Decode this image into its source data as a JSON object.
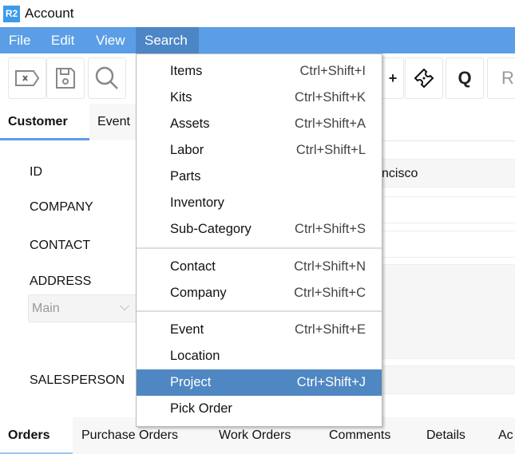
{
  "window": {
    "logo": "R2",
    "title": "Account"
  },
  "menubar": [
    "File",
    "Edit",
    "View",
    "Search"
  ],
  "toolbar": {
    "icons": [
      "clear-tag-icon",
      "save-icon",
      "search-icon",
      "add-user-icon",
      "ticket-icon"
    ],
    "q_label": "Q",
    "r_label": "R"
  },
  "top_tabs": [
    "Customer",
    "Event"
  ],
  "form": {
    "labels": [
      "ID",
      "COMPANY",
      "CONTACT",
      "ADDRESS",
      "SALESPERSON"
    ],
    "address_select": "Main",
    "id_value_partial": "ncisco"
  },
  "search_menu": {
    "groups": [
      [
        {
          "label": "Items",
          "shortcut": "Ctrl+Shift+I"
        },
        {
          "label": "Kits",
          "shortcut": "Ctrl+Shift+K"
        },
        {
          "label": "Assets",
          "shortcut": "Ctrl+Shift+A"
        },
        {
          "label": "Labor",
          "shortcut": "Ctrl+Shift+L"
        },
        {
          "label": "Parts",
          "shortcut": ""
        },
        {
          "label": "Inventory",
          "shortcut": ""
        },
        {
          "label": "Sub-Category",
          "shortcut": "Ctrl+Shift+S"
        }
      ],
      [
        {
          "label": "Contact",
          "shortcut": "Ctrl+Shift+N"
        },
        {
          "label": "Company",
          "shortcut": "Ctrl+Shift+C"
        }
      ],
      [
        {
          "label": "Event",
          "shortcut": "Ctrl+Shift+E"
        },
        {
          "label": "Location",
          "shortcut": ""
        },
        {
          "label": "Project",
          "shortcut": "Ctrl+Shift+J",
          "highlighted": true
        },
        {
          "label": "Pick Order",
          "shortcut": ""
        }
      ]
    ]
  },
  "bottom_tabs": [
    "Orders",
    "Purchase Orders",
    "Work Orders",
    "Comments",
    "Details",
    "Ac"
  ],
  "colors": {
    "menubar": "#5c9ee6",
    "highlight": "#4f87c2",
    "accent": "#3d9be9"
  }
}
